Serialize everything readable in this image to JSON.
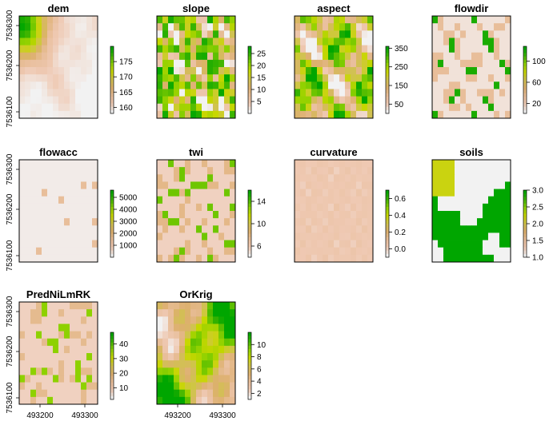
{
  "figure": {
    "layout": "raster-stack-grid",
    "columns": 4
  },
  "chart_data": [
    {
      "type": "heatmap",
      "title": "dem",
      "legend_ticks": [
        "175",
        "170",
        "165",
        "160"
      ],
      "legend_values": [
        175,
        170,
        165,
        160
      ],
      "legend_range": [
        158,
        180
      ],
      "palette": "terrain",
      "pattern": "dem",
      "yticks": [
        "7536300",
        "7536200",
        "7536100"
      ],
      "show_yaxis": true,
      "show_xaxis": false
    },
    {
      "type": "heatmap",
      "title": "slope",
      "legend_ticks": [
        "25",
        "20",
        "15",
        "10",
        "5"
      ],
      "legend_values": [
        25,
        20,
        15,
        10,
        5
      ],
      "legend_range": [
        0,
        28
      ],
      "palette": "terrain",
      "pattern": "slope",
      "show_yaxis": false,
      "show_xaxis": false
    },
    {
      "type": "heatmap",
      "title": "aspect",
      "legend_ticks": [
        "350",
        "250",
        "150",
        "50"
      ],
      "legend_values": [
        350,
        250,
        150,
        50
      ],
      "legend_range": [
        0,
        360
      ],
      "palette": "terrain",
      "pattern": "aspect",
      "show_yaxis": false,
      "show_xaxis": false
    },
    {
      "type": "heatmap",
      "title": "flowdir",
      "legend_ticks": [
        "100",
        "60",
        "20"
      ],
      "legend_values": [
        100,
        60,
        20
      ],
      "legend_range": [
        1,
        128
      ],
      "palette": "terrain",
      "pattern": "flowdir",
      "show_yaxis": false,
      "show_xaxis": false
    },
    {
      "type": "heatmap",
      "title": "flowacc",
      "legend_ticks": [
        "5000",
        "4000",
        "3000",
        "2000",
        "1000"
      ],
      "legend_values": [
        5000,
        4000,
        3000,
        2000,
        1000
      ],
      "legend_range": [
        0,
        5600
      ],
      "palette": "terrain",
      "pattern": "flowacc",
      "yticks": [
        "7536300",
        "7536200",
        "7536100"
      ],
      "show_yaxis": true,
      "show_xaxis": false
    },
    {
      "type": "heatmap",
      "title": "twi",
      "legend_ticks": [
        "14",
        "10",
        "6"
      ],
      "legend_values": [
        14,
        10,
        6
      ],
      "legend_range": [
        4,
        16
      ],
      "palette": "terrain",
      "pattern": "twi",
      "show_yaxis": false,
      "show_xaxis": false
    },
    {
      "type": "heatmap",
      "title": "curvature",
      "legend_ticks": [
        "0.6",
        "0.4",
        "0.2",
        "0.0"
      ],
      "legend_values": [
        0.6,
        0.4,
        0.2,
        0.0
      ],
      "legend_range": [
        -0.1,
        0.7
      ],
      "palette": "terrain",
      "pattern": "curvature",
      "show_yaxis": false,
      "show_xaxis": false
    },
    {
      "type": "heatmap",
      "title": "soils",
      "legend_ticks": [
        "3.0",
        "2.5",
        "2.0",
        "1.5",
        "1.0"
      ],
      "legend_values": [
        3.0,
        2.5,
        2.0,
        1.5,
        1.0
      ],
      "legend_range": [
        1,
        3
      ],
      "palette": "terrain",
      "pattern": "soils",
      "show_yaxis": false,
      "show_xaxis": false
    },
    {
      "type": "heatmap",
      "title": "PredNiLmRK",
      "legend_ticks": [
        "40",
        "30",
        "20",
        "10"
      ],
      "legend_values": [
        40,
        30,
        20,
        10
      ],
      "legend_range": [
        2,
        48
      ],
      "palette": "terrain",
      "pattern": "twi2",
      "yticks": [
        "7536300",
        "7536200",
        "7536100"
      ],
      "xticks": [
        "493200",
        "493300"
      ],
      "show_yaxis": true,
      "show_xaxis": true
    },
    {
      "type": "heatmap",
      "title": "OrKrig",
      "legend_ticks": [
        "10",
        "8",
        "6",
        "4",
        "2"
      ],
      "legend_values": [
        10,
        8,
        6,
        4,
        2
      ],
      "legend_range": [
        1,
        12
      ],
      "palette": "terrain",
      "pattern": "orkrig",
      "xticks": [
        "493200",
        "493300"
      ],
      "show_yaxis": false,
      "show_xaxis": true
    }
  ],
  "colors": {
    "palette_stops": [
      "#f2f2f2",
      "#efc9b3",
      "#e8be9a",
      "#ddb06e",
      "#d0c34f",
      "#c8d700",
      "#8ed100",
      "#40b500",
      "#00a600"
    ],
    "frame": "#000000"
  }
}
